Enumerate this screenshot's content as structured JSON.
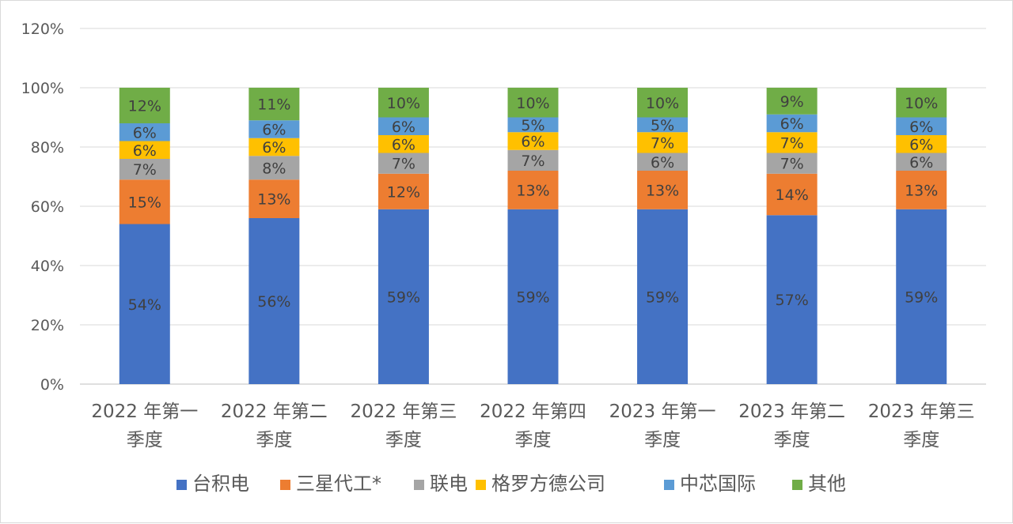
{
  "chart_data": {
    "type": "bar",
    "stacked": true,
    "categories": [
      [
        "2022 年第一",
        "季度"
      ],
      [
        "2022 年第二",
        "季度"
      ],
      [
        "2022 年第三",
        "季度"
      ],
      [
        "2022 年第四",
        "季度"
      ],
      [
        "2023 年第一",
        "季度"
      ],
      [
        "2023 年第二",
        "季度"
      ],
      [
        "2023 年第三",
        "季度"
      ]
    ],
    "series": [
      {
        "name": "台积电",
        "color": "#4472C4",
        "values": [
          54,
          56,
          59,
          59,
          59,
          57,
          59
        ]
      },
      {
        "name": "三星代工*",
        "color": "#ED7D31",
        "values": [
          15,
          13,
          12,
          13,
          13,
          14,
          13
        ]
      },
      {
        "name": "联电",
        "color": "#A5A5A5",
        "values": [
          7,
          8,
          7,
          7,
          6,
          7,
          6
        ]
      },
      {
        "name": "格罗方德公司",
        "color": "#FFC000",
        "values": [
          6,
          6,
          6,
          6,
          7,
          7,
          6
        ]
      },
      {
        "name": "中芯国际",
        "color": "#5B9BD5",
        "values": [
          6,
          6,
          6,
          5,
          5,
          6,
          6
        ]
      },
      {
        "name": "其他",
        "color": "#70AD47",
        "values": [
          12,
          11,
          10,
          10,
          10,
          9,
          10
        ]
      }
    ],
    "value_suffix": "%",
    "ylim": [
      0,
      120
    ],
    "yticks": [
      "0%",
      "20%",
      "40%",
      "60%",
      "80%",
      "100%",
      "120%"
    ],
    "grid": true,
    "legend_position": "bottom"
  }
}
